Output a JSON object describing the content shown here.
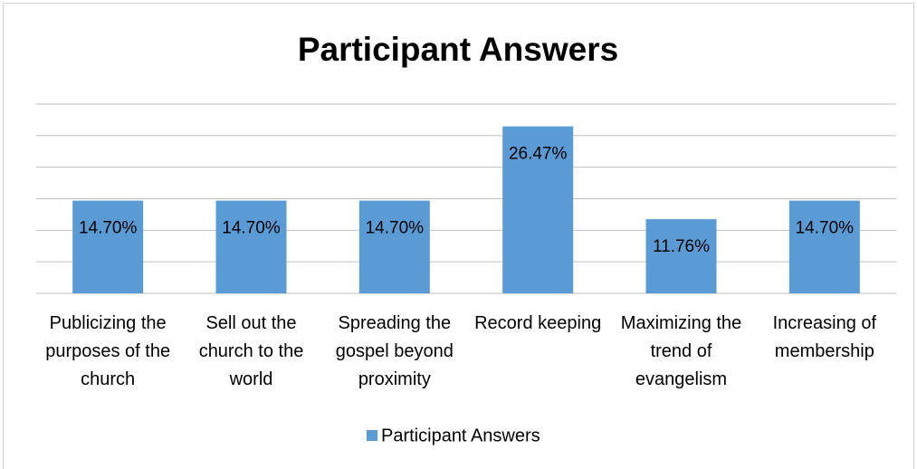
{
  "chart_data": {
    "type": "bar",
    "title": "Participant Answers",
    "categories": [
      "Publicizing the purposes of the church",
      "Sell out the church to the world",
      "Spreading the gospel beyond proximity",
      "Record keeping",
      "Maximizing the trend of evangelism",
      "Increasing of membership"
    ],
    "series": [
      {
        "name": "Participant Answers",
        "color": "#5b9bd5",
        "values": [
          14.7,
          14.7,
          14.7,
          26.47,
          11.76,
          14.7
        ],
        "value_labels": [
          "14.70%",
          "14.70%",
          "14.70%",
          "26.47%",
          "11.76%",
          "14.70%"
        ]
      }
    ],
    "ylim": [
      0,
      30
    ],
    "yticks": [
      0,
      5,
      10,
      15,
      20,
      25,
      30
    ],
    "grid": true,
    "legend": "bottom"
  }
}
